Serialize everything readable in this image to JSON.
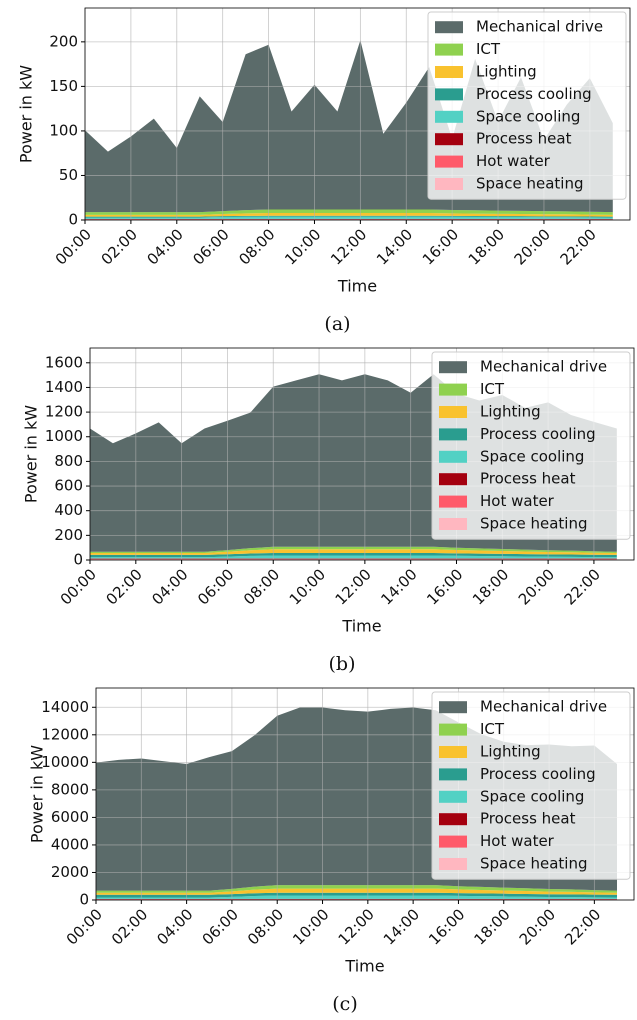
{
  "chart_data": [
    {
      "type": "area",
      "stacked": true,
      "grid": true,
      "legend": "upper right",
      "caption": "(a)",
      "xlabel": "Time",
      "ylabel": "Power in kW",
      "x": [
        0,
        1,
        2,
        3,
        4,
        5,
        6,
        7,
        8,
        9,
        10,
        11,
        12,
        13,
        14,
        15,
        16,
        17,
        18,
        19,
        20,
        21,
        22,
        23
      ],
      "xlim": [
        0,
        23.75
      ],
      "xticks": [
        {
          "value": 0,
          "label": "00:00"
        },
        {
          "value": 2,
          "label": "02:00"
        },
        {
          "value": 4,
          "label": "04:00"
        },
        {
          "value": 6,
          "label": "06:00"
        },
        {
          "value": 8,
          "label": "08:00"
        },
        {
          "value": 10,
          "label": "10:00"
        },
        {
          "value": 12,
          "label": "12:00"
        },
        {
          "value": 14,
          "label": "14:00"
        },
        {
          "value": 16,
          "label": "16:00"
        },
        {
          "value": 18,
          "label": "18:00"
        },
        {
          "value": 20,
          "label": "20:00"
        },
        {
          "value": 22,
          "label": "22:00"
        }
      ],
      "ylim": [
        0,
        238
      ],
      "yticks": [
        0,
        50,
        100,
        150,
        200
      ],
      "series": [
        {
          "name": "Mechanical drive",
          "color": "#5b6b6a",
          "values": [
            92,
            68,
            85,
            105,
            72,
            130,
            100,
            175,
            185,
            110,
            140,
            110,
            190,
            85,
            120,
            160,
            80,
            170,
            100,
            150,
            80,
            120,
            150,
            100
          ]
        },
        {
          "name": "ICT",
          "color": "#8fd14f",
          "values": [
            3,
            3,
            3,
            3,
            3,
            3,
            3.3,
            3.7,
            4,
            4,
            4,
            4,
            4,
            4,
            4,
            4,
            3.8,
            3.7,
            3.6,
            3.5,
            3.4,
            3.3,
            3.2,
            3
          ]
        },
        {
          "name": "Lighting",
          "color": "#f9c22e",
          "values": [
            2,
            2,
            2,
            2,
            2,
            2,
            2.4,
            2.8,
            3,
            3,
            3,
            3,
            3,
            3,
            3,
            3,
            2.8,
            2.7,
            2.6,
            2.5,
            2.4,
            2.3,
            2.2,
            2
          ]
        },
        {
          "name": "Process cooling",
          "color": "#2a9d8f",
          "values": [
            1,
            1,
            1,
            1,
            1,
            1,
            1,
            1,
            1,
            1,
            1,
            1,
            1,
            1,
            1,
            1,
            1,
            1,
            1,
            1,
            1,
            1,
            1,
            1
          ]
        },
        {
          "name": "Space cooling",
          "color": "#52d1c4",
          "values": [
            1.5,
            1.5,
            1.5,
            1.5,
            1.5,
            1.5,
            2,
            2.3,
            2.5,
            2.5,
            2.5,
            2.5,
            2.5,
            2.5,
            2.5,
            2.5,
            2.3,
            2.2,
            2,
            2,
            1.8,
            1.8,
            1.6,
            1.5
          ]
        },
        {
          "name": "Process heat",
          "color": "#a4000f",
          "values": [
            0.3,
            0.3,
            0.3,
            0.3,
            0.3,
            0.3,
            0.3,
            0.3,
            0.3,
            0.3,
            0.3,
            0.3,
            0.3,
            0.3,
            0.3,
            0.3,
            0.3,
            0.3,
            0.3,
            0.3,
            0.3,
            0.3,
            0.3,
            0.3
          ]
        },
        {
          "name": "Hot water",
          "color": "#ff5a6a",
          "values": [
            0.5,
            0.5,
            0.5,
            0.5,
            0.5,
            0.5,
            0.5,
            0.5,
            0.5,
            0.5,
            0.5,
            0.5,
            0.5,
            0.5,
            0.5,
            0.5,
            0.5,
            0.5,
            0.5,
            0.5,
            0.5,
            0.5,
            0.5,
            0.5
          ]
        },
        {
          "name": "Space heating",
          "color": "#ffb7c0",
          "values": [
            0.5,
            0.5,
            0.5,
            0.5,
            0.5,
            0.5,
            0.5,
            0.5,
            0.5,
            0.5,
            0.5,
            0.5,
            0.5,
            0.5,
            0.5,
            0.5,
            0.5,
            0.5,
            0.5,
            0.5,
            0.5,
            0.5,
            0.5,
            0.5
          ]
        }
      ]
    },
    {
      "type": "area",
      "stacked": true,
      "grid": true,
      "legend": "upper right",
      "caption": "(b)",
      "xlabel": "Time",
      "ylabel": "Power in kW",
      "x": [
        0,
        1,
        2,
        3,
        4,
        5,
        6,
        7,
        8,
        9,
        10,
        11,
        12,
        13,
        14,
        15,
        16,
        17,
        18,
        19,
        20,
        21,
        22,
        23
      ],
      "xlim": [
        0,
        23.75
      ],
      "xticks": [
        {
          "value": 0,
          "label": "00:00"
        },
        {
          "value": 2,
          "label": "02:00"
        },
        {
          "value": 4,
          "label": "04:00"
        },
        {
          "value": 6,
          "label": "06:00"
        },
        {
          "value": 8,
          "label": "08:00"
        },
        {
          "value": 10,
          "label": "10:00"
        },
        {
          "value": 12,
          "label": "12:00"
        },
        {
          "value": 14,
          "label": "14:00"
        },
        {
          "value": 16,
          "label": "16:00"
        },
        {
          "value": 18,
          "label": "18:00"
        },
        {
          "value": 20,
          "label": "20:00"
        },
        {
          "value": 22,
          "label": "22:00"
        }
      ],
      "ylim": [
        0,
        1720
      ],
      "yticks": [
        0,
        200,
        400,
        600,
        800,
        1000,
        1200,
        1400,
        1600
      ],
      "series": [
        {
          "name": "Mechanical drive",
          "color": "#5b6b6a",
          "values": [
            1000,
            880,
            960,
            1050,
            880,
            1000,
            1050,
            1100,
            1300,
            1350,
            1400,
            1350,
            1400,
            1350,
            1250,
            1400,
            1250,
            1200,
            1250,
            1150,
            1200,
            1100,
            1050,
            1000
          ]
        },
        {
          "name": "ICT",
          "color": "#8fd14f",
          "values": [
            10,
            10,
            10,
            10,
            10,
            10,
            13,
            17,
            20,
            20,
            20,
            20,
            20,
            20,
            20,
            20,
            18,
            17,
            16,
            15,
            14,
            13,
            12,
            10
          ]
        },
        {
          "name": "Lighting",
          "color": "#f9c22e",
          "values": [
            15,
            15,
            15,
            15,
            15,
            15,
            20,
            26,
            30,
            30,
            30,
            30,
            30,
            30,
            30,
            30,
            27,
            25,
            23,
            21,
            19,
            18,
            16,
            15
          ]
        },
        {
          "name": "Process cooling",
          "color": "#2a9d8f",
          "values": [
            20,
            20,
            20,
            20,
            20,
            20,
            20,
            20,
            20,
            20,
            20,
            20,
            20,
            20,
            20,
            20,
            20,
            20,
            20,
            20,
            20,
            20,
            20,
            20
          ]
        },
        {
          "name": "Space cooling",
          "color": "#52d1c4",
          "values": [
            10,
            10,
            10,
            10,
            10,
            10,
            15,
            21,
            25,
            25,
            25,
            25,
            25,
            25,
            25,
            25,
            22,
            20,
            18,
            16,
            14,
            13,
            11,
            10
          ]
        },
        {
          "name": "Process heat",
          "color": "#a4000f",
          "values": [
            2,
            2,
            2,
            2,
            2,
            2,
            2,
            2,
            2,
            2,
            2,
            2,
            2,
            2,
            2,
            2,
            2,
            2,
            2,
            2,
            2,
            2,
            2,
            2
          ]
        },
        {
          "name": "Hot water",
          "color": "#ff5a6a",
          "values": [
            5,
            5,
            5,
            5,
            5,
            5,
            5,
            5,
            5,
            5,
            5,
            5,
            5,
            5,
            5,
            5,
            5,
            5,
            5,
            5,
            5,
            5,
            5,
            5
          ]
        },
        {
          "name": "Space heating",
          "color": "#ffb7c0",
          "values": [
            5,
            5,
            5,
            5,
            5,
            5,
            5,
            5,
            5,
            5,
            5,
            5,
            5,
            5,
            5,
            5,
            5,
            5,
            5,
            5,
            5,
            5,
            5,
            5
          ]
        }
      ]
    },
    {
      "type": "area",
      "stacked": true,
      "grid": true,
      "legend": "upper right",
      "caption": "(c)",
      "xlabel": "Time",
      "ylabel": "Power in kW",
      "x": [
        0,
        1,
        2,
        3,
        4,
        5,
        6,
        7,
        8,
        9,
        10,
        11,
        12,
        13,
        14,
        15,
        16,
        17,
        18,
        19,
        20,
        21,
        22,
        23
      ],
      "xlim": [
        0,
        23.75
      ],
      "xticks": [
        {
          "value": 0,
          "label": "00:00"
        },
        {
          "value": 2,
          "label": "02:00"
        },
        {
          "value": 4,
          "label": "04:00"
        },
        {
          "value": 6,
          "label": "06:00"
        },
        {
          "value": 8,
          "label": "08:00"
        },
        {
          "value": 10,
          "label": "10:00"
        },
        {
          "value": 12,
          "label": "12:00"
        },
        {
          "value": 14,
          "label": "14:00"
        },
        {
          "value": 16,
          "label": "16:00"
        },
        {
          "value": 18,
          "label": "18:00"
        },
        {
          "value": 20,
          "label": "20:00"
        },
        {
          "value": 22,
          "label": "22:00"
        }
      ],
      "ylim": [
        0,
        15400
      ],
      "yticks": [
        0,
        2000,
        4000,
        6000,
        8000,
        10000,
        12000,
        14000
      ],
      "series": [
        {
          "name": "Mechanical drive",
          "color": "#5b6b6a",
          "values": [
            9300,
            9500,
            9600,
            9400,
            9200,
            9700,
            10000,
            11000,
            12300,
            12900,
            12900,
            12700,
            12600,
            12800,
            12900,
            12700,
            11900,
            11100,
            10600,
            10400,
            10500,
            10400,
            10500,
            9200
          ]
        },
        {
          "name": "ICT",
          "color": "#8fd14f",
          "values": [
            150,
            150,
            150,
            150,
            150,
            150,
            180,
            220,
            250,
            250,
            250,
            250,
            250,
            250,
            250,
            250,
            230,
            220,
            210,
            200,
            190,
            180,
            170,
            150
          ]
        },
        {
          "name": "Lighting",
          "color": "#f9c22e",
          "values": [
            150,
            150,
            150,
            150,
            150,
            150,
            200,
            260,
            300,
            300,
            300,
            300,
            300,
            300,
            300,
            300,
            270,
            250,
            230,
            210,
            190,
            180,
            160,
            150
          ]
        },
        {
          "name": "Process cooling",
          "color": "#2a9d8f",
          "values": [
            200,
            200,
            200,
            200,
            200,
            200,
            200,
            200,
            200,
            200,
            200,
            200,
            200,
            200,
            200,
            200,
            200,
            200,
            200,
            200,
            200,
            200,
            200,
            200
          ]
        },
        {
          "name": "Space cooling",
          "color": "#52d1c4",
          "values": [
            100,
            100,
            100,
            100,
            100,
            100,
            150,
            210,
            250,
            250,
            250,
            250,
            250,
            250,
            250,
            250,
            220,
            200,
            180,
            160,
            140,
            130,
            110,
            100
          ]
        },
        {
          "name": "Process heat",
          "color": "#a4000f",
          "values": [
            20,
            20,
            20,
            20,
            20,
            20,
            20,
            20,
            20,
            20,
            20,
            20,
            20,
            20,
            20,
            20,
            20,
            20,
            20,
            20,
            20,
            20,
            20,
            20
          ]
        },
        {
          "name": "Hot water",
          "color": "#ff5a6a",
          "values": [
            30,
            30,
            30,
            30,
            30,
            30,
            30,
            30,
            30,
            30,
            30,
            30,
            30,
            30,
            30,
            30,
            30,
            30,
            30,
            30,
            30,
            30,
            30,
            30
          ]
        },
        {
          "name": "Space heating",
          "color": "#ffb7c0",
          "values": [
            30,
            30,
            30,
            30,
            30,
            30,
            30,
            30,
            30,
            30,
            30,
            30,
            30,
            30,
            30,
            30,
            30,
            30,
            30,
            30,
            30,
            30,
            30,
            30
          ]
        }
      ]
    }
  ]
}
